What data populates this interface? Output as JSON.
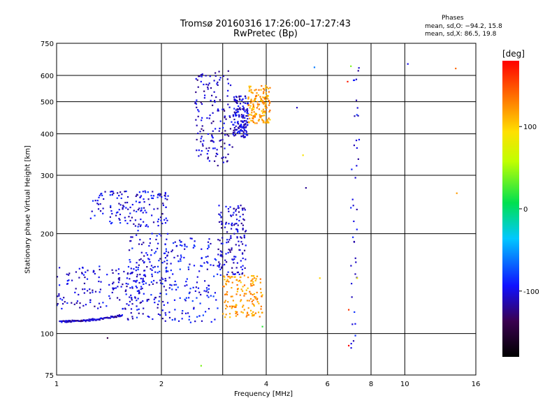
{
  "chart_data": {
    "type": "scatter",
    "title": "Tromsø 20160316 17:26:00–17:27:43",
    "subtitle": "RwPretec (Bp)",
    "xlabel": "Frequency [MHz]",
    "ylabel": "Stationary phase Virtual Height [km]",
    "x_scale": "log",
    "y_scale": "log",
    "xlim": [
      1,
      16
    ],
    "ylim": [
      75,
      750
    ],
    "x_ticks": [
      "1",
      "2",
      "4",
      "6",
      "8",
      "10",
      "16"
    ],
    "y_ticks": [
      "750",
      "600",
      "500",
      "400",
      "300",
      "200",
      "100",
      "75"
    ],
    "grid": true,
    "phases": {
      "title": "Phases",
      "o_mode": "mean, sd,O: −94.2, 15.8",
      "x_mode": "mean, sd,X:  86.5, 19.8"
    },
    "colorbar": {
      "unit": "[deg]",
      "ticks": [
        "100",
        "0",
        "-100"
      ],
      "range": [
        -180,
        180
      ]
    },
    "clusters": [
      {
        "x": [
          1.02,
          1.55
        ],
        "y": [
          108,
          113
        ],
        "phase": -110,
        "note": "trace"
      },
      {
        "x": [
          1.0,
          1.8
        ],
        "y": [
          118,
          160
        ],
        "phase": -105
      },
      {
        "x": [
          1.6,
          2.1
        ],
        "y": [
          110,
          205
        ],
        "phase": -100
      },
      {
        "x": [
          2.05,
          2.9
        ],
        "y": [
          108,
          195
        ],
        "phase": -95
      },
      {
        "x": [
          2.9,
          3.5
        ],
        "y": [
          150,
          245
        ],
        "phase": -105
      },
      {
        "x": [
          3.0,
          3.9
        ],
        "y": [
          112,
          150
        ],
        "phase": 120
      },
      {
        "x": [
          1.25,
          2.1
        ],
        "y": [
          210,
          270
        ],
        "phase": -100
      },
      {
        "x": [
          2.5,
          3.2
        ],
        "y": [
          320,
          620
        ],
        "phase": -110
      },
      {
        "x": [
          3.2,
          3.55
        ],
        "y": [
          390,
          520
        ],
        "phase": -105
      },
      {
        "x": [
          3.55,
          4.1
        ],
        "y": [
          430,
          560
        ],
        "phase": 120
      },
      {
        "x": [
          7.0,
          7.4
        ],
        "y": [
          90,
          650
        ],
        "phase": -100,
        "note": "vertical column"
      }
    ],
    "isolated_points": [
      {
        "x": 5.5,
        "y": 635,
        "phase": -60
      },
      {
        "x": 7.0,
        "y": 640,
        "phase": 40
      },
      {
        "x": 10.2,
        "y": 650,
        "phase": -100
      },
      {
        "x": 14.0,
        "y": 630,
        "phase": 140
      },
      {
        "x": 4.9,
        "y": 480,
        "phase": -110
      },
      {
        "x": 5.1,
        "y": 345,
        "phase": 90
      },
      {
        "x": 5.2,
        "y": 275,
        "phase": -120
      },
      {
        "x": 6.85,
        "y": 575,
        "phase": 170
      },
      {
        "x": 7.35,
        "y": 620,
        "phase": -120
      },
      {
        "x": 14.1,
        "y": 265,
        "phase": 120
      },
      {
        "x": 5.7,
        "y": 147,
        "phase": 100
      },
      {
        "x": 7.3,
        "y": 147,
        "phase": 80
      },
      {
        "x": 6.9,
        "y": 118,
        "phase": 160
      },
      {
        "x": 6.9,
        "y": 92,
        "phase": 180
      },
      {
        "x": 1.4,
        "y": 97,
        "phase": -140
      },
      {
        "x": 2.6,
        "y": 80,
        "phase": 40
      },
      {
        "x": 3.9,
        "y": 105,
        "phase": 20
      }
    ]
  }
}
